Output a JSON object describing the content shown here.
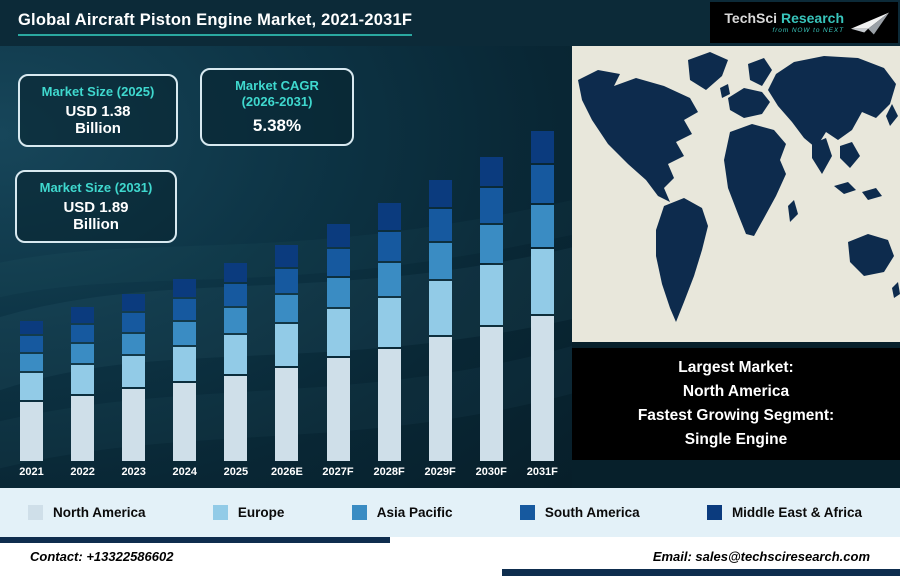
{
  "header": {
    "title": "Global Aircraft Piston Engine Market, 2021-2031F",
    "logo": {
      "name1": "TechSci",
      "name2": " Research",
      "tagline": "from NOW to NEXT"
    }
  },
  "info_boxes": {
    "size_2025": {
      "title": "Market Size (2025)",
      "value": "USD 1.38",
      "unit": "Billion"
    },
    "cagr": {
      "title_line1": "Market CAGR",
      "title_line2": "(2026-2031)",
      "value": "5.38%"
    },
    "size_2031": {
      "title": "Market Size (2031)",
      "value": "USD 1.89",
      "unit": "Billion"
    }
  },
  "highlight_box": {
    "label1": "Largest Market:",
    "value1": "North America",
    "label2": "Fastest Growing Segment:",
    "value2": "Single Engine"
  },
  "chart_data": {
    "type": "bar",
    "stacked": true,
    "title": "Global Aircraft Piston Engine Market, 2021-2031F",
    "unit": "USD Billion",
    "categories": [
      "2021",
      "2022",
      "2023",
      "2024",
      "2025",
      "2026E",
      "2027F",
      "2028F",
      "2029F",
      "2030F",
      "2031F"
    ],
    "series": [
      {
        "name": "North America",
        "color": "#cfdfe9",
        "values": [
          0.52,
          0.54,
          0.57,
          0.59,
          0.62,
          0.65,
          0.69,
          0.72,
          0.77,
          0.81,
          0.85
        ]
      },
      {
        "name": "Europe",
        "color": "#92cbe7",
        "values": [
          0.23,
          0.24,
          0.25,
          0.26,
          0.28,
          0.29,
          0.31,
          0.32,
          0.34,
          0.36,
          0.38
        ]
      },
      {
        "name": "Asia Pacific",
        "color": "#3a8cc3",
        "values": [
          0.15,
          0.16,
          0.16,
          0.17,
          0.18,
          0.19,
          0.2,
          0.21,
          0.22,
          0.23,
          0.25
        ]
      },
      {
        "name": "South America",
        "color": "#16599f",
        "values": [
          0.14,
          0.14,
          0.15,
          0.16,
          0.16,
          0.17,
          0.18,
          0.19,
          0.2,
          0.21,
          0.22
        ]
      },
      {
        "name": "Middle East & Africa",
        "color": "#0b3b7e",
        "values": [
          0.12,
          0.13,
          0.13,
          0.14,
          0.14,
          0.15,
          0.15,
          0.17,
          0.17,
          0.18,
          0.19
        ]
      }
    ],
    "totals": [
      1.16,
      1.21,
      1.26,
      1.32,
      1.38,
      1.45,
      1.53,
      1.61,
      1.7,
      1.79,
      1.89
    ],
    "legend_position": "bottom",
    "grid": false
  },
  "footer": {
    "contact": "Contact: +13322586602",
    "email": "Email: sales@techsciresearch.com"
  },
  "colors": {
    "header_bg": "#0c2a38",
    "accent_teal": "#2aa8a0",
    "box_title_teal": "#3fd8ce",
    "map_land": "#0d2b4d",
    "map_sea": "#e8e7db",
    "legend_bg": "#e3f1f8",
    "footer_accent": "#0e2d4e"
  }
}
